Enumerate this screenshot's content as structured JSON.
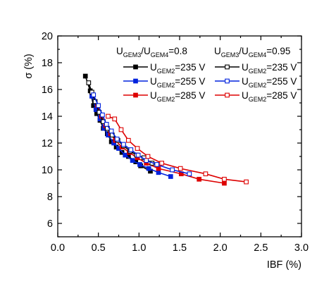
{
  "chart_data": {
    "type": "scatter",
    "xlabel": "IBF (%)",
    "ylabel": "σ (%)",
    "xlim": [
      0.0,
      3.0
    ],
    "ylim": [
      5,
      20
    ],
    "x_ticks": [
      "0.0",
      "0.5",
      "1.0",
      "1.5",
      "2.0",
      "2.5",
      "3.0"
    ],
    "y_ticks": [
      "6",
      "8",
      "10",
      "12",
      "14",
      "16",
      "18",
      "20"
    ],
    "x_tick_values": [
      0.0,
      0.5,
      1.0,
      1.5,
      2.0,
      2.5,
      3.0
    ],
    "y_tick_values": [
      6,
      8,
      10,
      12,
      14,
      16,
      18,
      20
    ],
    "grid": false,
    "legend": {
      "placement": "top-right",
      "group_headers": [
        {
          "main": "U",
          "sub1": "GEM3",
          "mid": "/U",
          "sub2": "GEM4",
          "tail": "=0.8"
        },
        {
          "main": "U",
          "sub1": "GEM3",
          "mid": "/U",
          "sub2": "GEM4",
          "tail": "=0.95"
        }
      ],
      "entry_main": "U",
      "entry_sub": "GEM2"
    },
    "series": [
      {
        "name": "=235 V",
        "group": "0.8",
        "color": "#000000",
        "marker": "filled-square",
        "x": [
          0.34,
          0.4,
          0.44,
          0.48,
          0.52,
          0.56,
          0.61,
          0.66,
          0.72,
          0.79,
          0.87,
          0.96,
          1.02,
          1.14
        ],
        "y": [
          17.0,
          15.9,
          14.8,
          14.2,
          13.7,
          13.1,
          12.7,
          12.1,
          11.7,
          11.3,
          11.0,
          10.6,
          10.3,
          9.9
        ]
      },
      {
        "name": "=255 V",
        "group": "0.8",
        "color": "#0022dd",
        "marker": "filled-square",
        "x": [
          0.42,
          0.47,
          0.52,
          0.57,
          0.62,
          0.69,
          0.75,
          0.83,
          0.92,
          1.01,
          1.12,
          1.24,
          1.39
        ],
        "y": [
          15.5,
          14.5,
          13.8,
          13.1,
          12.6,
          12.0,
          11.6,
          11.1,
          10.7,
          10.4,
          10.1,
          9.8,
          9.5
        ]
      },
      {
        "name": "=285 V",
        "group": "0.8",
        "color": "#dd0000",
        "marker": "filled-square",
        "x": [
          0.49,
          0.54,
          0.59,
          0.65,
          0.71,
          0.79,
          0.88,
          0.98,
          1.09,
          1.24,
          1.52,
          1.74,
          2.05
        ],
        "y": [
          14.8,
          14.0,
          13.3,
          12.7,
          12.2,
          11.7,
          11.3,
          10.9,
          10.5,
          10.1,
          9.7,
          9.3,
          9.0
        ]
      },
      {
        "name": "=235 V",
        "group": "0.95",
        "color": "#000000",
        "marker": "open-square",
        "x": [
          0.38,
          0.42,
          0.46,
          0.51,
          0.56,
          0.61,
          0.67,
          0.74,
          0.81,
          0.89,
          0.97,
          1.06,
          1.16
        ],
        "y": [
          16.5,
          15.8,
          15.1,
          14.3,
          13.6,
          13.1,
          12.6,
          12.2,
          11.8,
          11.4,
          11.1,
          10.9,
          10.5
        ]
      },
      {
        "name": "=255 V",
        "group": "0.95",
        "color": "#0022dd",
        "marker": "open-square",
        "x": [
          0.44,
          0.5,
          0.55,
          0.6,
          0.66,
          0.73,
          0.81,
          0.9,
          0.99,
          1.09,
          1.22,
          1.41,
          1.62
        ],
        "y": [
          15.6,
          14.8,
          14.1,
          13.4,
          12.9,
          12.3,
          11.9,
          11.5,
          11.1,
          10.7,
          10.4,
          10.0,
          9.7
        ]
      },
      {
        "name": "=285 V",
        "group": "0.95",
        "color": "#dd0000",
        "marker": "open-square",
        "x": [
          0.62,
          0.7,
          0.78,
          0.87,
          0.98,
          1.11,
          1.28,
          1.51,
          1.82,
          2.05,
          2.32
        ],
        "y": [
          14.0,
          13.8,
          13.0,
          12.2,
          11.6,
          11.0,
          10.5,
          10.1,
          9.7,
          9.3,
          9.1
        ]
      }
    ]
  }
}
